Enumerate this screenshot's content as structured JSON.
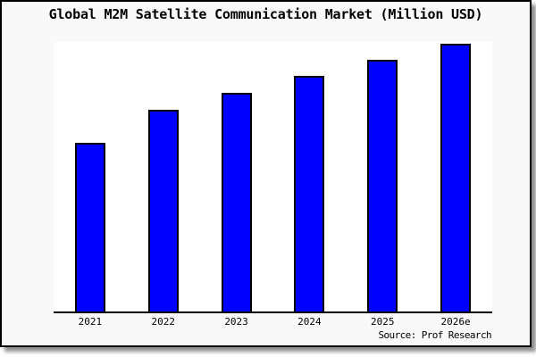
{
  "frame": {
    "background": "#f9f9f9",
    "border_color": "#000000",
    "shadow_color": "#8f8f8f",
    "outer_background": "#ffffff"
  },
  "chart_data": {
    "type": "bar",
    "title": "Global M2M Satellite Communication Market (Million USD)",
    "categories": [
      "2021",
      "2022",
      "2023",
      "2024",
      "2025",
      "2026e"
    ],
    "values": [
      189,
      226,
      245,
      264,
      282,
      300
    ],
    "values_note": "chart shows no y-axis scale; values are relative bar heights measured in pixels",
    "y_axis": "none",
    "grid": false,
    "legend": "none",
    "bar_color": "#0000ff",
    "bar_border_color": "#000000",
    "plot_background": "#ffffff",
    "source_note": "Source: Prof Research"
  }
}
